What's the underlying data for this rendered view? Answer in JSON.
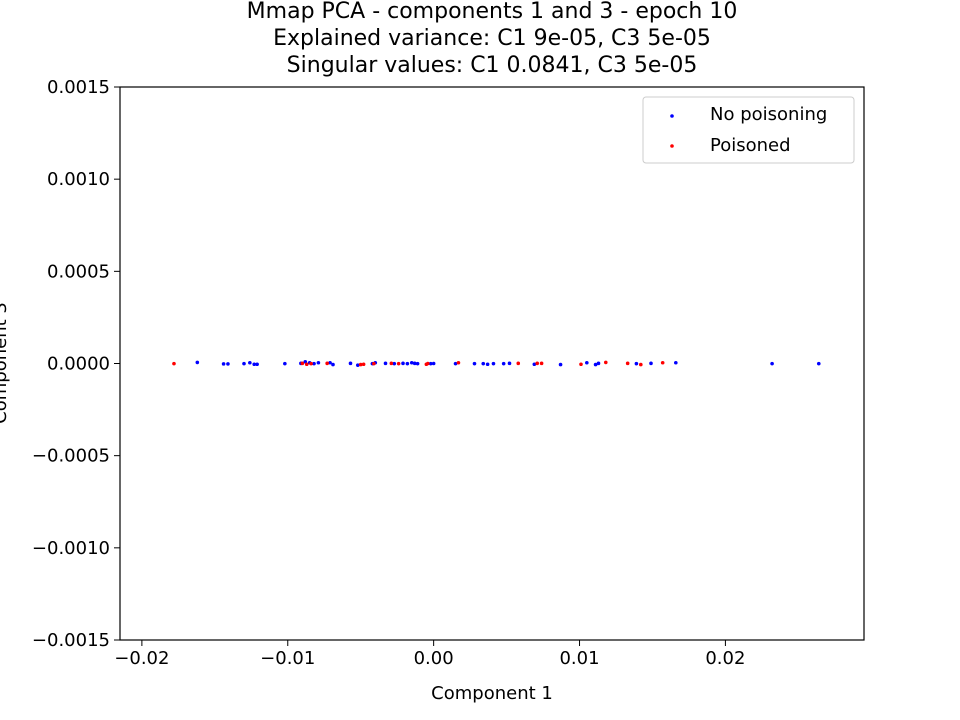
{
  "chart_data": {
    "type": "scatter",
    "title_lines": [
      "Mmap PCA - components 1 and 3 - epoch 10",
      "Explained variance: C1 9e-05, C3 5e-05",
      "Singular values: C1 0.0841, C3 5e-05"
    ],
    "xlabel": "Component 1",
    "ylabel": "Component 3",
    "xlim": [
      -0.0215,
      0.0295
    ],
    "ylim": [
      -0.0015,
      0.0015
    ],
    "x_ticks": [
      {
        "value": -0.02,
        "label": "−0.02"
      },
      {
        "value": -0.01,
        "label": "−0.01"
      },
      {
        "value": 0.0,
        "label": "0.00"
      },
      {
        "value": 0.01,
        "label": "0.01"
      },
      {
        "value": 0.02,
        "label": "0.02"
      }
    ],
    "y_ticks": [
      {
        "value": 0.0015,
        "label": "0.0015"
      },
      {
        "value": 0.001,
        "label": "0.0010"
      },
      {
        "value": 0.0005,
        "label": "0.0005"
      },
      {
        "value": 0.0,
        "label": "0.0000"
      },
      {
        "value": -0.0005,
        "label": "−0.0005"
      },
      {
        "value": -0.001,
        "label": "−0.0010"
      },
      {
        "value": -0.0015,
        "label": "−0.0015"
      }
    ],
    "grid": false,
    "legend_position": "top-right",
    "series": [
      {
        "name": "No poisoning",
        "color": "#0000ff",
        "points": [
          [
            -0.0162,
            6e-06
          ],
          [
            -0.0144,
            -2e-06
          ],
          [
            -0.0141,
            -2e-06
          ],
          [
            -0.013,
            -1e-06
          ],
          [
            -0.0126,
            4e-06
          ],
          [
            -0.0123,
            -4e-06
          ],
          [
            -0.0121,
            -4e-06
          ],
          [
            -0.0102,
            -1e-06
          ],
          [
            -0.0091,
            1e-06
          ],
          [
            -0.0088,
            9e-06
          ],
          [
            -0.0085,
            4e-06
          ],
          [
            -0.0082,
            -1e-06
          ],
          [
            -0.0079,
            4e-06
          ],
          [
            -0.0071,
            4e-06
          ],
          [
            -0.0069,
            -6e-06
          ],
          [
            -0.0057,
            1e-06
          ],
          [
            -0.0052,
            -9e-06
          ],
          [
            -0.0042,
            -1e-06
          ],
          [
            -0.004,
            4e-06
          ],
          [
            -0.0033,
            1e-06
          ],
          [
            -0.0027,
            -1e-06
          ],
          [
            -0.0021,
            1e-06
          ],
          [
            -0.0018,
            -1e-06
          ],
          [
            -0.0015,
            4e-06
          ],
          [
            -0.0013,
            1e-06
          ],
          [
            -0.0011,
            -1e-06
          ],
          [
            -0.0002,
            -1e-06
          ],
          [
            0.0,
            0.0
          ],
          [
            0.0015,
            -1e-06
          ],
          [
            0.0028,
            -1e-06
          ],
          [
            0.0034,
            -1e-06
          ],
          [
            0.0037,
            -4e-06
          ],
          [
            0.0041,
            -1e-06
          ],
          [
            0.0048,
            -1e-06
          ],
          [
            0.0052,
            1e-06
          ],
          [
            0.0069,
            -4e-06
          ],
          [
            0.0087,
            -6e-06
          ],
          [
            0.0105,
            4e-06
          ],
          [
            0.0111,
            -6e-06
          ],
          [
            0.0113,
            1e-06
          ],
          [
            0.0139,
            -1e-06
          ],
          [
            0.0149,
            1e-06
          ],
          [
            0.0166,
            4e-06
          ],
          [
            0.0232,
            -1e-06
          ],
          [
            0.0264,
            -1e-06
          ]
        ]
      },
      {
        "name": "Poisoned",
        "color": "#ff0000",
        "points": [
          [
            -0.0178,
            -1e-06
          ],
          [
            -0.009,
            1e-06
          ],
          [
            -0.0087,
            -4e-06
          ],
          [
            -0.0084,
            -1e-06
          ],
          [
            -0.0073,
            1e-06
          ],
          [
            -0.005,
            -6e-06
          ],
          [
            -0.0048,
            -4e-06
          ],
          [
            -0.0041,
            -1e-06
          ],
          [
            -0.0029,
            1e-06
          ],
          [
            -0.0024,
            -1e-06
          ],
          [
            -0.0005,
            -4e-06
          ],
          [
            -0.0004,
            0.0
          ],
          [
            0.0017,
            4e-06
          ],
          [
            0.0058,
            1e-06
          ],
          [
            0.0071,
            1e-06
          ],
          [
            0.0074,
            1e-06
          ],
          [
            0.0101,
            -4e-06
          ],
          [
            0.0118,
            6e-06
          ],
          [
            0.0133,
            1e-06
          ],
          [
            0.0142,
            -6e-06
          ],
          [
            0.0157,
            4e-06
          ]
        ]
      }
    ]
  }
}
